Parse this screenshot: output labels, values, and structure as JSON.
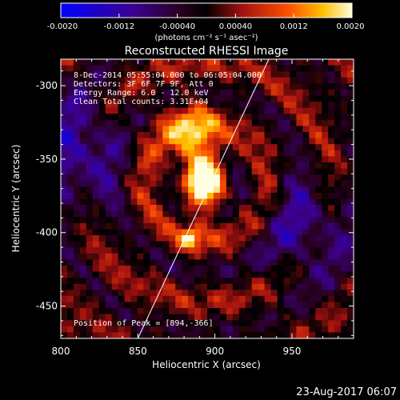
{
  "colorbar": {
    "ticks": [
      "-0.0020",
      "-0.0012",
      "-0.00040",
      "0.00040",
      "0.0012",
      "0.0020"
    ],
    "unit_label": "(photons cm⁻² s⁻¹ asec⁻²)",
    "range": [
      -0.002,
      0.002
    ]
  },
  "annotations": {
    "time": "8-Dec-2014 05:55:04.000 to 06:05:04.000",
    "detectors": "Detectors: 3F 6F 7F 9F, Att 0",
    "energy": "Energy Range: 6.0 - 12.0 keV",
    "method": "Clean     Total counts: 3.31E+04",
    "peak": "Position of Peak = [894,-366]"
  },
  "footer": {
    "date": "23-Aug-2017 06:07"
  },
  "chart_data": {
    "type": "heatmap",
    "title": "Reconstructed RHESSI Image",
    "xlabel": "Heliocentric X (arcsec)",
    "ylabel": "Heliocentric Y (arcsec)",
    "xlim": [
      800,
      990
    ],
    "ylim": [
      -472,
      -282
    ],
    "x_ticks": [
      "800",
      "850",
      "900",
      "950"
    ],
    "y_ticks": [
      "-300",
      "-350",
      "-400",
      "-450"
    ],
    "x_tick_values": [
      800,
      850,
      900,
      950
    ],
    "y_tick_values": [
      -300,
      -350,
      -400,
      -450
    ],
    "peak": {
      "x": 894,
      "y": -366
    },
    "secondary_source": {
      "x": 884,
      "y": -404
    },
    "limb_line": [
      {
        "x": 850,
        "y": -472
      },
      {
        "x": 935,
        "y": -282
      }
    ]
  }
}
